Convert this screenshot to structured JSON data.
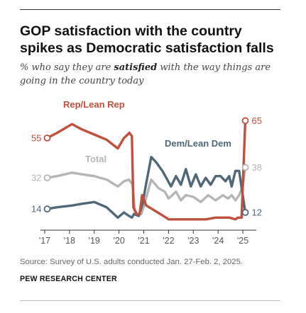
{
  "header": {
    "title_line1": "GOP satisfaction with the country",
    "title_line2": "spikes as Democratic satisfaction falls",
    "subtitle_pre": "% who say they are ",
    "subtitle_em": "satisfied",
    "subtitle_post": " with the way things are going in the country today"
  },
  "footer": {
    "source": "Source: Survey of U.S. adults conducted Jan. 27-Feb. 2, 2025.",
    "credit": "PEW RESEARCH CENTER"
  },
  "chart_data": {
    "type": "line",
    "xlim": [
      2017,
      2025.2
    ],
    "ylim": [
      3,
      75
    ],
    "x_ticks": [
      {
        "value": 2017,
        "label": "'17"
      },
      {
        "value": 2018,
        "label": "'18"
      },
      {
        "value": 2019,
        "label": "'19"
      },
      {
        "value": 2020,
        "label": "'20"
      },
      {
        "value": 2021,
        "label": "'21"
      },
      {
        "value": 2022,
        "label": "'22"
      },
      {
        "value": 2023,
        "label": "'23"
      },
      {
        "value": 2024,
        "label": "'24"
      },
      {
        "value": 2025,
        "label": "'25"
      }
    ],
    "grid": false,
    "series": [
      {
        "name": "Rep/Lean Rep",
        "color": "#c0503c",
        "start_label": "55",
        "end_label": "65",
        "points": [
          [
            2017.1,
            55
          ],
          [
            2017.5,
            58
          ],
          [
            2018.1,
            63
          ],
          [
            2018.5,
            60
          ],
          [
            2019.0,
            57
          ],
          [
            2019.5,
            54
          ],
          [
            2019.95,
            49
          ],
          [
            2020.2,
            55
          ],
          [
            2020.42,
            58
          ],
          [
            2020.52,
            56
          ],
          [
            2020.58,
            15
          ],
          [
            2020.72,
            11
          ],
          [
            2020.83,
            11
          ],
          [
            2020.93,
            22
          ],
          [
            2021.1,
            16
          ],
          [
            2021.45,
            13
          ],
          [
            2021.9,
            9
          ],
          [
            2022.0,
            8
          ],
          [
            2022.5,
            8
          ],
          [
            2023.0,
            8
          ],
          [
            2023.5,
            8
          ],
          [
            2023.9,
            9
          ],
          [
            2024.1,
            9
          ],
          [
            2024.45,
            9
          ],
          [
            2024.7,
            8
          ],
          [
            2024.8,
            9
          ],
          [
            2024.95,
            9
          ],
          [
            2025.1,
            65
          ]
        ]
      },
      {
        "name": "Total",
        "color": "#b5b5b5",
        "start_label": "32",
        "end_label": "38",
        "points": [
          [
            2017.1,
            32
          ],
          [
            2017.5,
            33
          ],
          [
            2018.1,
            35
          ],
          [
            2018.5,
            34
          ],
          [
            2019.0,
            33
          ],
          [
            2019.5,
            31
          ],
          [
            2019.95,
            27
          ],
          [
            2020.2,
            30
          ],
          [
            2020.4,
            31
          ],
          [
            2020.55,
            28
          ],
          [
            2020.65,
            11
          ],
          [
            2020.9,
            11
          ],
          [
            2021.05,
            18
          ],
          [
            2021.3,
            31
          ],
          [
            2021.6,
            26
          ],
          [
            2021.85,
            24
          ],
          [
            2022.0,
            20
          ],
          [
            2022.3,
            24
          ],
          [
            2022.5,
            19
          ],
          [
            2022.7,
            22
          ],
          [
            2023.0,
            21
          ],
          [
            2023.3,
            18
          ],
          [
            2023.6,
            22
          ],
          [
            2023.9,
            19
          ],
          [
            2024.2,
            22
          ],
          [
            2024.4,
            20
          ],
          [
            2024.55,
            22
          ],
          [
            2024.7,
            19
          ],
          [
            2024.85,
            22
          ],
          [
            2025.0,
            27
          ],
          [
            2025.1,
            38
          ]
        ]
      },
      {
        "name": "Dem/Lean Dem",
        "color": "#4e6878",
        "start_label": "14",
        "end_label": "12",
        "points": [
          [
            2017.1,
            14
          ],
          [
            2017.5,
            15
          ],
          [
            2018.1,
            16
          ],
          [
            2018.5,
            17
          ],
          [
            2019.0,
            18
          ],
          [
            2019.5,
            15
          ],
          [
            2019.95,
            9
          ],
          [
            2020.2,
            12
          ],
          [
            2020.4,
            10
          ],
          [
            2020.52,
            9
          ],
          [
            2020.6,
            11
          ],
          [
            2020.8,
            10
          ],
          [
            2020.95,
            17
          ],
          [
            2021.1,
            29
          ],
          [
            2021.3,
            44
          ],
          [
            2021.5,
            41
          ],
          [
            2021.75,
            36
          ],
          [
            2021.95,
            31
          ],
          [
            2022.1,
            27
          ],
          [
            2022.3,
            33
          ],
          [
            2022.5,
            28
          ],
          [
            2022.7,
            37
          ],
          [
            2022.9,
            27
          ],
          [
            2023.1,
            34
          ],
          [
            2023.3,
            27
          ],
          [
            2023.5,
            32
          ],
          [
            2023.7,
            28
          ],
          [
            2023.9,
            33
          ],
          [
            2024.1,
            33
          ],
          [
            2024.3,
            30
          ],
          [
            2024.45,
            33
          ],
          [
            2024.55,
            27
          ],
          [
            2024.7,
            36
          ],
          [
            2024.85,
            36
          ],
          [
            2025.1,
            12
          ]
        ]
      }
    ]
  }
}
